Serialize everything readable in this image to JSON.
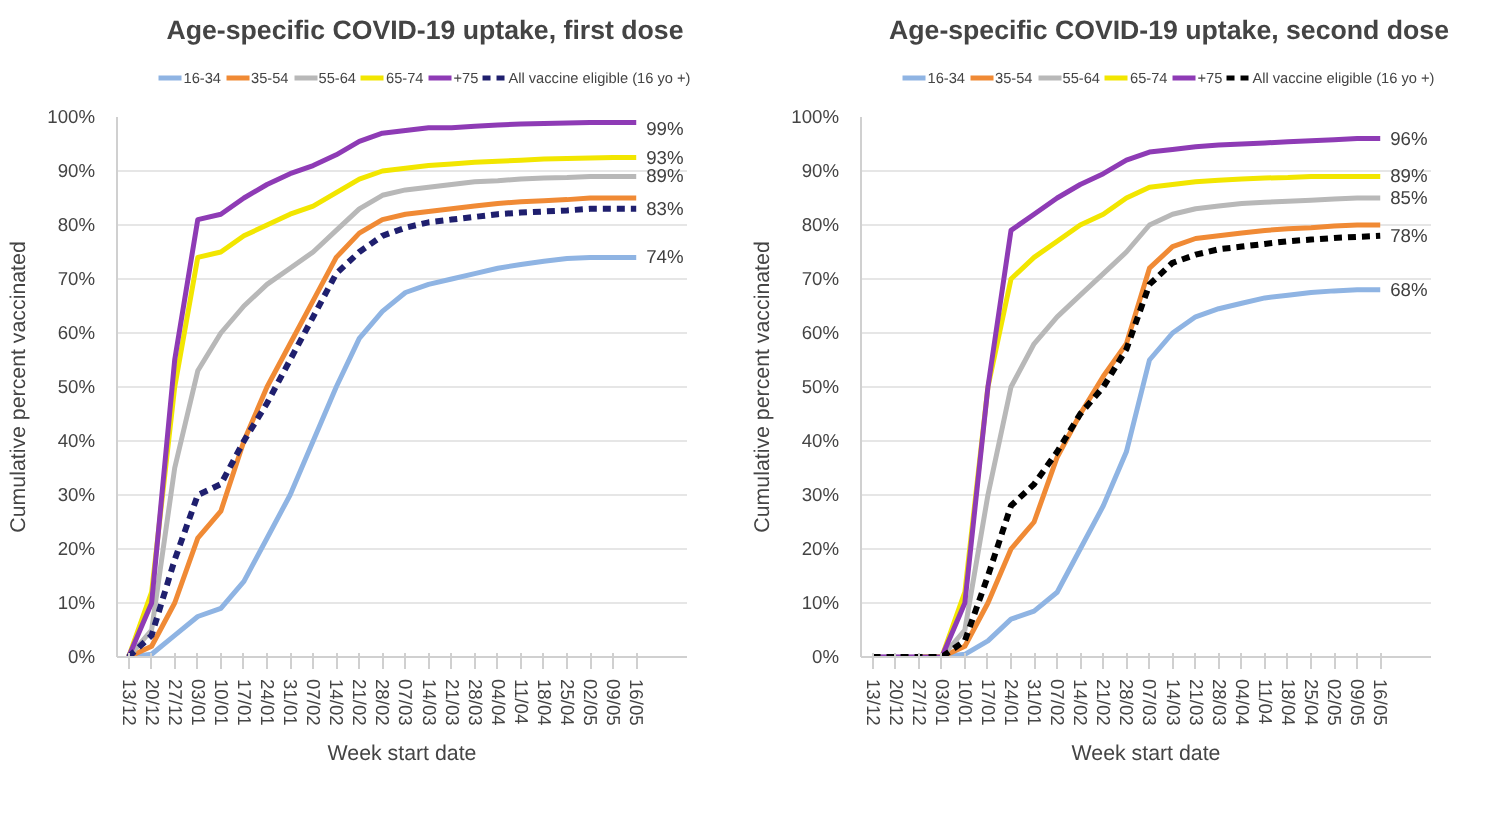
{
  "chart_data": [
    {
      "type": "line",
      "title": "Age-specific COVID-19 uptake, first dose",
      "xlabel": "Week start date",
      "ylabel": "Cumulative percent vaccinated",
      "grid": "y",
      "legend": "top",
      "marker": "none",
      "categories": [
        "13/12",
        "20/12",
        "27/12",
        "03/01",
        "10/01",
        "17/01",
        "24/01",
        "31/01",
        "07/02",
        "14/02",
        "21/02",
        "28/02",
        "07/03",
        "14/03",
        "21/03",
        "28/03",
        "04/04",
        "11/04",
        "18/04",
        "25/04",
        "02/05",
        "09/05",
        "16/05"
      ],
      "ylim": [
        0,
        100
      ],
      "yticks": [
        {
          "value": 0,
          "label": "0%"
        },
        {
          "value": 10,
          "label": "10%"
        },
        {
          "value": 20,
          "label": "20%"
        },
        {
          "value": 30,
          "label": "30%"
        },
        {
          "value": 40,
          "label": "40%"
        },
        {
          "value": 50,
          "label": "50%"
        },
        {
          "value": 60,
          "label": "60%"
        },
        {
          "value": 70,
          "label": "70%"
        },
        {
          "value": 80,
          "label": "80%"
        },
        {
          "value": 90,
          "label": "90%"
        },
        {
          "value": 100,
          "label": "100%"
        }
      ],
      "series": [
        {
          "name": "16-34",
          "color": "#8fb4e3",
          "line_style": "solid",
          "values": [
            0,
            0.5,
            4,
            7.5,
            9,
            14,
            22,
            30,
            40,
            50,
            59,
            64,
            67.5,
            69,
            70,
            71,
            72,
            72.7,
            73.3,
            73.8,
            74,
            74,
            74
          ],
          "value_labels": [
            null,
            null,
            null,
            null,
            null,
            null,
            null,
            null,
            null,
            null,
            null,
            null,
            null,
            null,
            null,
            null,
            null,
            null,
            null,
            null,
            null,
            null,
            "74%"
          ]
        },
        {
          "name": "35-54",
          "color": "#f08a35",
          "line_style": "solid",
          "values": [
            0,
            2,
            10,
            22,
            27,
            40,
            50,
            58,
            66,
            74,
            78.5,
            81,
            82,
            82.5,
            83,
            83.5,
            84,
            84.3,
            84.5,
            84.7,
            85,
            85,
            85
          ]
        },
        {
          "name": "55-64",
          "color": "#b8b8b8",
          "line_style": "solid",
          "values": [
            0,
            5,
            35,
            53,
            60,
            65,
            69,
            72,
            75,
            79,
            83,
            85.5,
            86.5,
            87,
            87.5,
            88,
            88.2,
            88.5,
            88.7,
            88.8,
            89,
            89,
            89
          ],
          "value_labels": [
            null,
            null,
            null,
            null,
            null,
            null,
            null,
            null,
            null,
            null,
            null,
            null,
            null,
            null,
            null,
            null,
            null,
            null,
            null,
            null,
            null,
            null,
            "89%"
          ]
        },
        {
          "name": "65-74",
          "color": "#f2e600",
          "line_style": "solid",
          "values": [
            0,
            12,
            50,
            74,
            75,
            78,
            80,
            82,
            83.5,
            86,
            88.5,
            90,
            90.5,
            91,
            91.3,
            91.6,
            91.8,
            92,
            92.2,
            92.3,
            92.4,
            92.5,
            92.5
          ],
          "value_labels": [
            null,
            null,
            null,
            null,
            null,
            null,
            null,
            null,
            null,
            null,
            null,
            null,
            null,
            null,
            null,
            null,
            null,
            null,
            null,
            null,
            null,
            null,
            "93%"
          ]
        },
        {
          "name": "+75",
          "color": "#8e3bb5",
          "line_style": "solid",
          "values": [
            0,
            10,
            55,
            81,
            82,
            85,
            87.5,
            89.5,
            91,
            93,
            95.5,
            97,
            97.5,
            98,
            98,
            98.3,
            98.5,
            98.7,
            98.8,
            98.9,
            99,
            99,
            99
          ],
          "value_labels": [
            null,
            null,
            null,
            null,
            null,
            null,
            null,
            null,
            null,
            null,
            null,
            null,
            null,
            null,
            null,
            null,
            null,
            null,
            null,
            null,
            null,
            null,
            "99%"
          ]
        },
        {
          "name": "All vaccine eligible (16 yo +)",
          "color": "#1f1f6e",
          "line_style": "dashed",
          "values": [
            0,
            4,
            18,
            30,
            32,
            40,
            47,
            55,
            63,
            71,
            75,
            78,
            79.5,
            80.5,
            81,
            81.5,
            82,
            82.3,
            82.5,
            82.7,
            83,
            83,
            83
          ],
          "value_labels": [
            null,
            null,
            null,
            null,
            null,
            null,
            null,
            null,
            null,
            null,
            null,
            null,
            null,
            null,
            null,
            null,
            null,
            null,
            null,
            null,
            null,
            null,
            "83%"
          ]
        }
      ]
    },
    {
      "type": "line",
      "title": "Age-specific COVID-19 uptake, second dose",
      "xlabel": "Week start date",
      "ylabel": "Cumulative percent vaccinated",
      "grid": "y",
      "legend": "top",
      "marker": "none",
      "categories": [
        "13/12",
        "20/12",
        "27/12",
        "03/01",
        "10/01",
        "17/01",
        "24/01",
        "31/01",
        "07/02",
        "14/02",
        "21/02",
        "28/02",
        "07/03",
        "14/03",
        "21/03",
        "28/03",
        "04/04",
        "11/04",
        "18/04",
        "25/04",
        "02/05",
        "09/05",
        "16/05"
      ],
      "ylim": [
        0,
        100
      ],
      "yticks": [
        {
          "value": 0,
          "label": "0%"
        },
        {
          "value": 10,
          "label": "10%"
        },
        {
          "value": 20,
          "label": "20%"
        },
        {
          "value": 30,
          "label": "30%"
        },
        {
          "value": 40,
          "label": "40%"
        },
        {
          "value": 50,
          "label": "50%"
        },
        {
          "value": 60,
          "label": "60%"
        },
        {
          "value": 70,
          "label": "70%"
        },
        {
          "value": 80,
          "label": "80%"
        },
        {
          "value": 90,
          "label": "90%"
        },
        {
          "value": 100,
          "label": "100%"
        }
      ],
      "series": [
        {
          "name": "16-34",
          "color": "#8fb4e3",
          "line_style": "solid",
          "values": [
            null,
            null,
            0,
            0,
            0.5,
            3,
            7,
            8.5,
            12,
            20,
            28,
            38,
            55,
            60,
            63,
            64.5,
            65.5,
            66.5,
            67,
            67.5,
            67.8,
            68,
            68
          ],
          "value_labels": [
            null,
            null,
            null,
            null,
            null,
            null,
            null,
            null,
            null,
            null,
            null,
            null,
            null,
            null,
            null,
            null,
            null,
            null,
            null,
            null,
            null,
            null,
            "68%"
          ]
        },
        {
          "name": "35-54",
          "color": "#f08a35",
          "line_style": "solid",
          "values": [
            null,
            null,
            0,
            0,
            2,
            10,
            20,
            25,
            37,
            45,
            52,
            58,
            72,
            76,
            77.5,
            78,
            78.5,
            79,
            79.3,
            79.5,
            79.8,
            80,
            80
          ]
        },
        {
          "name": "55-64",
          "color": "#b8b8b8",
          "line_style": "solid",
          "values": [
            0,
            0,
            0,
            0,
            5,
            30,
            50,
            58,
            63,
            67,
            71,
            75,
            80,
            82,
            83,
            83.5,
            84,
            84.2,
            84.4,
            84.6,
            84.8,
            85,
            85
          ],
          "value_labels": [
            null,
            null,
            null,
            null,
            null,
            null,
            null,
            null,
            null,
            null,
            null,
            null,
            null,
            null,
            null,
            null,
            null,
            null,
            null,
            null,
            null,
            null,
            "85%"
          ]
        },
        {
          "name": "65-74",
          "color": "#f2e600",
          "line_style": "solid",
          "values": [
            null,
            null,
            0,
            0,
            12,
            50,
            70,
            74,
            77,
            80,
            82,
            85,
            87,
            87.5,
            88,
            88.3,
            88.5,
            88.7,
            88.8,
            89,
            89,
            89,
            89
          ],
          "value_labels": [
            null,
            null,
            null,
            null,
            null,
            null,
            null,
            null,
            null,
            null,
            null,
            null,
            null,
            null,
            null,
            null,
            null,
            null,
            null,
            null,
            null,
            null,
            "89%"
          ]
        },
        {
          "name": "+75",
          "color": "#8e3bb5",
          "line_style": "solid",
          "values": [
            0,
            0,
            0,
            0,
            10,
            50,
            79,
            82,
            85,
            87.5,
            89.5,
            92,
            93.5,
            94,
            94.5,
            94.8,
            95,
            95.2,
            95.4,
            95.6,
            95.8,
            96,
            96
          ],
          "value_labels": [
            null,
            null,
            null,
            null,
            null,
            null,
            null,
            null,
            null,
            null,
            null,
            null,
            null,
            null,
            null,
            null,
            null,
            null,
            null,
            null,
            null,
            null,
            "96%"
          ]
        },
        {
          "name": "All vaccine eligible (16 yo +)",
          "color": "#000000",
          "line_style": "dashed",
          "values": [
            0,
            0,
            0,
            0,
            3,
            15,
            28,
            32,
            38,
            45,
            50,
            57,
            69,
            73,
            74.5,
            75.5,
            76,
            76.5,
            77,
            77.3,
            77.6,
            77.8,
            78
          ],
          "value_labels": [
            null,
            null,
            null,
            null,
            null,
            null,
            null,
            null,
            null,
            null,
            null,
            null,
            null,
            null,
            null,
            null,
            null,
            null,
            null,
            null,
            null,
            null,
            "78%"
          ]
        }
      ]
    }
  ]
}
